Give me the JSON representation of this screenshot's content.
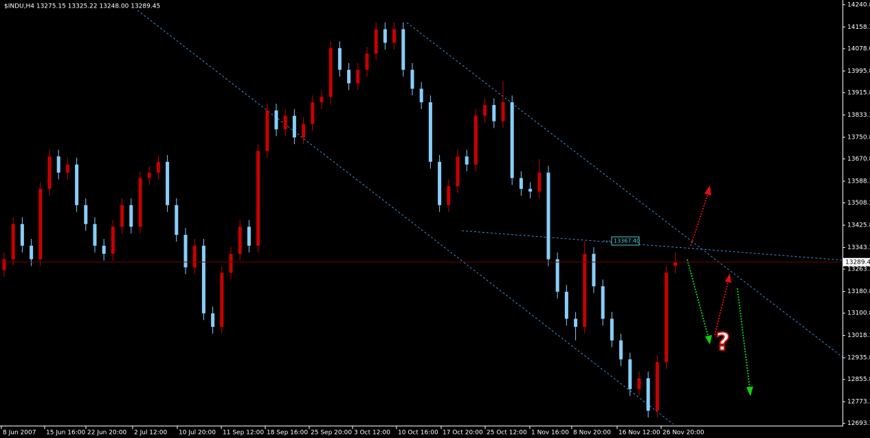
{
  "chart_data": {
    "type": "candlestick",
    "title": "$INDU,H4  13275.15 13325.22 13248.00 13289.45",
    "up_color": "#c80000",
    "down_color": "#87cefa",
    "price_line_color": "#7a0000",
    "categories": [
      "8 Jun 2007",
      "15 Jun 16:00",
      "22 Jun 20:00",
      "2 Jul 12:00",
      "10 Jul 20:00",
      "11 Sep 12:00",
      "18 Sep 16:00",
      "25 Sep 20:00",
      "3 Oct 12:00",
      "10 Oct 16:00",
      "17 Oct 20:00",
      "25 Oct 12:00",
      "1 Nov 16:00",
      "8 Nov 20:00",
      "16 Nov 12:00",
      "26 Nov 20:00"
    ],
    "open": [
      13260,
      13300,
      13430,
      13350,
      13300,
      13560,
      13680,
      13620,
      13650,
      13500,
      13430,
      13350,
      13320,
      13420,
      13500,
      13420,
      13600,
      13620,
      13660,
      13500,
      13390,
      13270,
      13350,
      13100,
      13050,
      13250,
      13320,
      13420,
      13350,
      13700,
      13850,
      13780,
      13830,
      13750,
      13800,
      13880,
      13900,
      14080,
      14000,
      13950,
      14000,
      14060,
      14150,
      14100,
      14150,
      14000,
      13930,
      13880,
      13660,
      13500,
      13570,
      13680,
      13650,
      13830,
      13870,
      13810,
      13880,
      13600,
      13560,
      13550,
      13620,
      13300,
      13180,
      13080,
      13050,
      13320,
      13200,
      13080,
      13000,
      12930,
      12820,
      12860,
      12740,
      12920,
      13275.15
    ],
    "high": [
      13325,
      13455,
      13455,
      13375,
      13585,
      13705,
      13705,
      13675,
      13675,
      13525,
      13455,
      13375,
      13445,
      13525,
      13525,
      13625,
      13645,
      13685,
      13685,
      13525,
      13415,
      13375,
      13375,
      13125,
      13275,
      13345,
      13445,
      13445,
      13725,
      13875,
      13875,
      13855,
      13855,
      13825,
      13905,
      13925,
      14105,
      14105,
      14025,
      14025,
      14085,
      14175,
      14175,
      14175,
      14175,
      14025,
      13955,
      13905,
      13685,
      13595,
      13705,
      13705,
      13855,
      13895,
      13895,
      13960,
      13905,
      13625,
      13585,
      13670,
      13645,
      13325,
      13205,
      13105,
      13367.4,
      13345,
      13225,
      13105,
      13025,
      12955,
      12885,
      12885,
      12945,
      13275,
      13325.22
    ],
    "low": [
      13235,
      13275,
      13325,
      13275,
      13275,
      13535,
      13595,
      13595,
      13475,
      13405,
      13325,
      13295,
      13295,
      13395,
      13395,
      13395,
      13575,
      13595,
      13475,
      13365,
      13245,
      13245,
      13075,
      13025,
      13025,
      13225,
      13295,
      13325,
      13325,
      13675,
      13755,
      13755,
      13725,
      13725,
      13775,
      13855,
      13875,
      13975,
      13925,
      13925,
      13975,
      14035,
      14075,
      14075,
      13975,
      13905,
      13855,
      13635,
      13475,
      13475,
      13545,
      13625,
      13625,
      13805,
      13785,
      13785,
      13575,
      13535,
      13525,
      13525,
      13275,
      13155,
      13055,
      13000,
      13025,
      13175,
      13055,
      12975,
      12905,
      12795,
      12795,
      12715,
      12715,
      12895,
      13248
    ],
    "close": [
      13300,
      13430,
      13350,
      13300,
      13560,
      13680,
      13620,
      13650,
      13500,
      13430,
      13350,
      13320,
      13420,
      13500,
      13420,
      13600,
      13620,
      13660,
      13500,
      13390,
      13270,
      13350,
      13100,
      13050,
      13250,
      13320,
      13420,
      13350,
      13700,
      13850,
      13780,
      13830,
      13750,
      13800,
      13880,
      13900,
      14080,
      14000,
      13950,
      14000,
      14060,
      14150,
      14100,
      14150,
      14000,
      13930,
      13880,
      13660,
      13500,
      13570,
      13680,
      13650,
      13830,
      13870,
      13810,
      13880,
      13600,
      13560,
      13550,
      13620,
      13300,
      13180,
      13080,
      13050,
      13320,
      13200,
      13080,
      13000,
      12930,
      12820,
      12860,
      12740,
      12920,
      13250,
      13289.45
    ],
    "annotation": {
      "value": 13367.4,
      "label": "13367.40"
    },
    "question": "?",
    "ylim": [
      12685,
      14258
    ],
    "yticks": [
      {
        "value": 14240.8,
        "label": "14240.80"
      },
      {
        "value": 14158.3,
        "label": "14158.30"
      },
      {
        "value": 14078.0,
        "label": "14078.00"
      },
      {
        "value": 13995.8,
        "label": "13995.80"
      },
      {
        "value": 13915.8,
        "label": "13915.80"
      },
      {
        "value": 13833.3,
        "label": "13833.30"
      },
      {
        "value": 13750.8,
        "label": "13750.80"
      },
      {
        "value": 13670.8,
        "label": "13670.80"
      },
      {
        "value": 13588.3,
        "label": "13588.30"
      },
      {
        "value": 13508.3,
        "label": "13508.30"
      },
      {
        "value": 13425.8,
        "label": "13425.80"
      },
      {
        "value": 13343.3,
        "label": "13343.30"
      },
      {
        "value": 13263.3,
        "label": "13263.30"
      },
      {
        "value": 13180.8,
        "label": "13180.80"
      },
      {
        "value": 13100.8,
        "label": "13100.80"
      },
      {
        "value": 13018.3,
        "label": "13018.30"
      },
      {
        "value": 12935.8,
        "label": "12935.80"
      },
      {
        "value": 12855.8,
        "label": "12855.80"
      },
      {
        "value": 12773.3,
        "label": "12773.30"
      },
      {
        "value": 12693.3,
        "label": "12693.30"
      }
    ]
  }
}
